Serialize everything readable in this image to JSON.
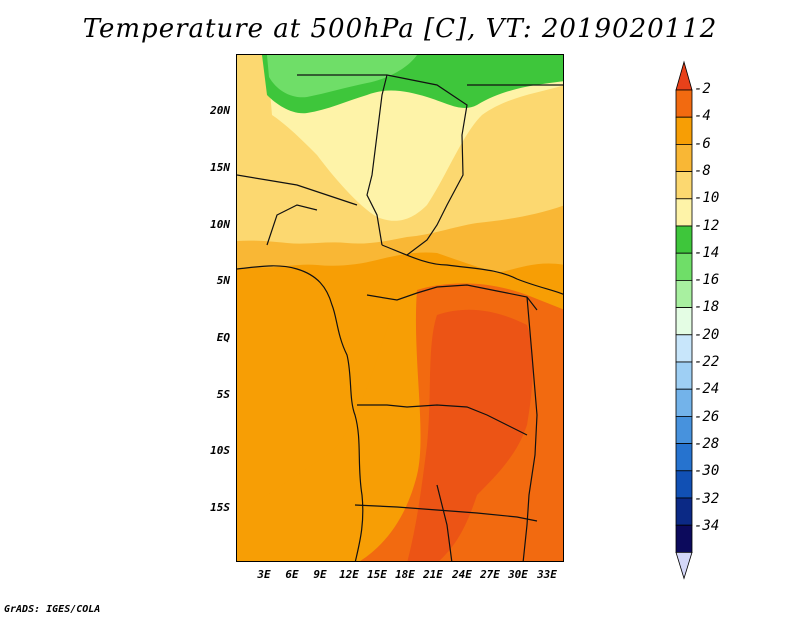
{
  "title": "Temperature at 500hPa [C], VT: 2019020112",
  "credit": "GrADS: IGES/COLA",
  "lat_labels": [
    "20N",
    "15N",
    "10N",
    "5N",
    "EQ",
    "5S",
    "10S",
    "15S"
  ],
  "lon_labels": [
    "3E",
    "6E",
    "9E",
    "12E",
    "15E",
    "18E",
    "21E",
    "24E",
    "27E",
    "30E",
    "33E"
  ],
  "colorbar": {
    "labels": [
      "-2",
      "-4",
      "-6",
      "-8",
      "-10",
      "-12",
      "-14",
      "-16",
      "-18",
      "-20",
      "-22",
      "-24",
      "-26",
      "-28",
      "-30",
      "-32",
      "-34"
    ],
    "colors": [
      "#e8411a",
      "#f26a10",
      "#f79e05",
      "#f9b735",
      "#fcd870",
      "#fef3a8",
      "#3ec63b",
      "#6fde68",
      "#a8f0a0",
      "#e4fde4",
      "#c8e6fb",
      "#9ecff4",
      "#73b3ea",
      "#4792dd",
      "#2673cf",
      "#1150b4",
      "#0b2985",
      "#0c0a5c",
      "#d4d7f8"
    ],
    "top_color": "#e8411a",
    "bottom_color": "#d4d7f8"
  }
}
